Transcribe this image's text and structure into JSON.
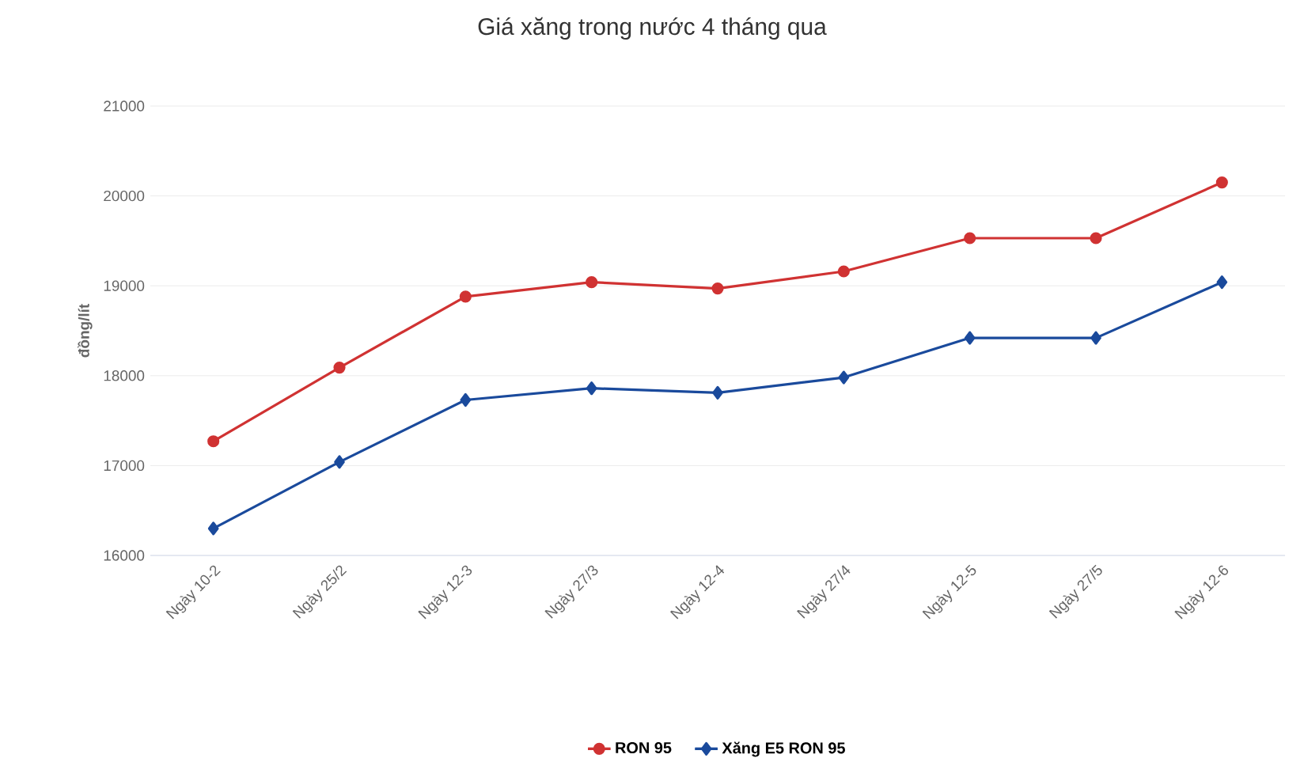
{
  "chart_data": {
    "type": "line",
    "title": "Giá xăng trong nước 4 tháng qua",
    "ylabel": "đồng/lít",
    "categories": [
      "Ngày 10-2",
      "Ngày 25/2",
      "Ngày 12-3",
      "Ngày 27/3",
      "Ngày 12-4",
      "Ngày 27/4",
      "Ngày 12-5",
      "Ngày 27/5",
      "Ngày 12-6"
    ],
    "series": [
      {
        "name": "RON 95",
        "color": "#d03232",
        "marker": "circle",
        "values": [
          17270,
          18090,
          18880,
          19040,
          18970,
          19160,
          19530,
          19530,
          20150
        ]
      },
      {
        "name": "Xăng E5 RON 95",
        "color": "#1a4a9c",
        "marker": "diamond",
        "values": [
          16300,
          17040,
          17730,
          17860,
          17810,
          17980,
          18420,
          18420,
          19040
        ]
      }
    ],
    "ylim": [
      16000,
      21000
    ],
    "yticks": [
      16000,
      17000,
      18000,
      19000,
      20000,
      21000
    ],
    "grid": "y",
    "legend": "bottom",
    "line_style": "solid"
  }
}
